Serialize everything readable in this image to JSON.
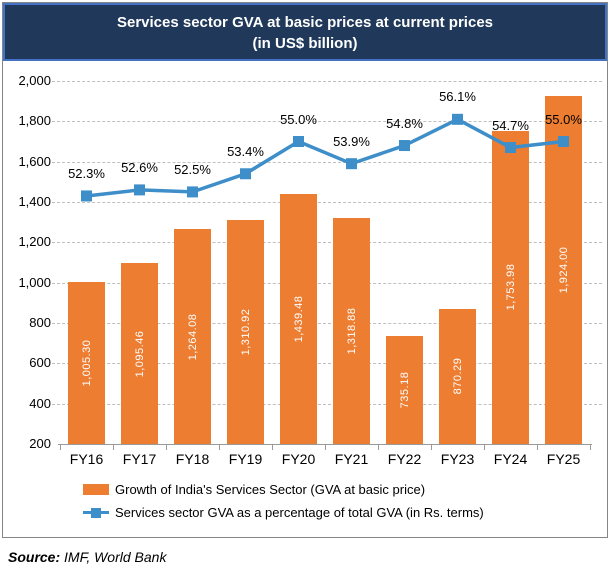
{
  "title": {
    "line1": "Services sector GVA at basic prices at current prices",
    "line2": "(in US$ billion)"
  },
  "chart_data": {
    "type": "combo-bar-line",
    "categories": [
      "FY16",
      "FY17",
      "FY18",
      "FY19",
      "FY20",
      "FY21",
      "FY22",
      "FY23",
      "FY24",
      "FY25"
    ],
    "series": [
      {
        "name": "Growth of India's Services Sector (GVA at basic price)",
        "type": "bar",
        "values": [
          1005.3,
          1095.46,
          1264.08,
          1310.92,
          1439.48,
          1318.88,
          735.18,
          870.29,
          1753.98,
          1924.0
        ],
        "labels": [
          "1,005.30",
          "1,095.46",
          "1,264.08",
          "1,310.92",
          "1,439.48",
          "1,318.88",
          "735.18",
          "870.29",
          "1,753.98",
          "1,924.00"
        ],
        "color": "#ED7D31"
      },
      {
        "name": "Services sector GVA as a percentage of total GVA (in Rs. terms)",
        "type": "line",
        "values": [
          52.3,
          52.6,
          52.5,
          53.4,
          55.0,
          53.9,
          54.8,
          56.1,
          54.7,
          55.0
        ],
        "labels": [
          "52.3%",
          "52.6%",
          "52.5%",
          "53.4%",
          "55.0%",
          "53.9%",
          "54.8%",
          "56.1%",
          "54.7%",
          "55.0%"
        ],
        "color": "#3D8EC9"
      }
    ],
    "y_axis": {
      "min": 200,
      "max": 2000,
      "step": 200,
      "tick_labels": [
        "200",
        "400",
        "600",
        "800",
        "1,000",
        "1,200",
        "1,400",
        "1,600",
        "1,800",
        "2,000"
      ]
    },
    "y2_axis": {
      "min": 40,
      "max": 58,
      "visible": false
    },
    "grid": "horizontal-dashed",
    "legend_position": "bottom-left",
    "colors": {
      "bar": "#ED7D31",
      "line": "#3D8EC9",
      "title_bg": "#20395A",
      "title_border": "#4472C4"
    }
  },
  "legend": {
    "items": [
      {
        "label": "Growth of India's Services Sector (GVA at basic price)"
      },
      {
        "label": "Services sector GVA as a percentage of total GVA (in Rs. terms)"
      }
    ]
  },
  "source": {
    "prefix": "Source:",
    "text": "IMF, World Bank"
  }
}
